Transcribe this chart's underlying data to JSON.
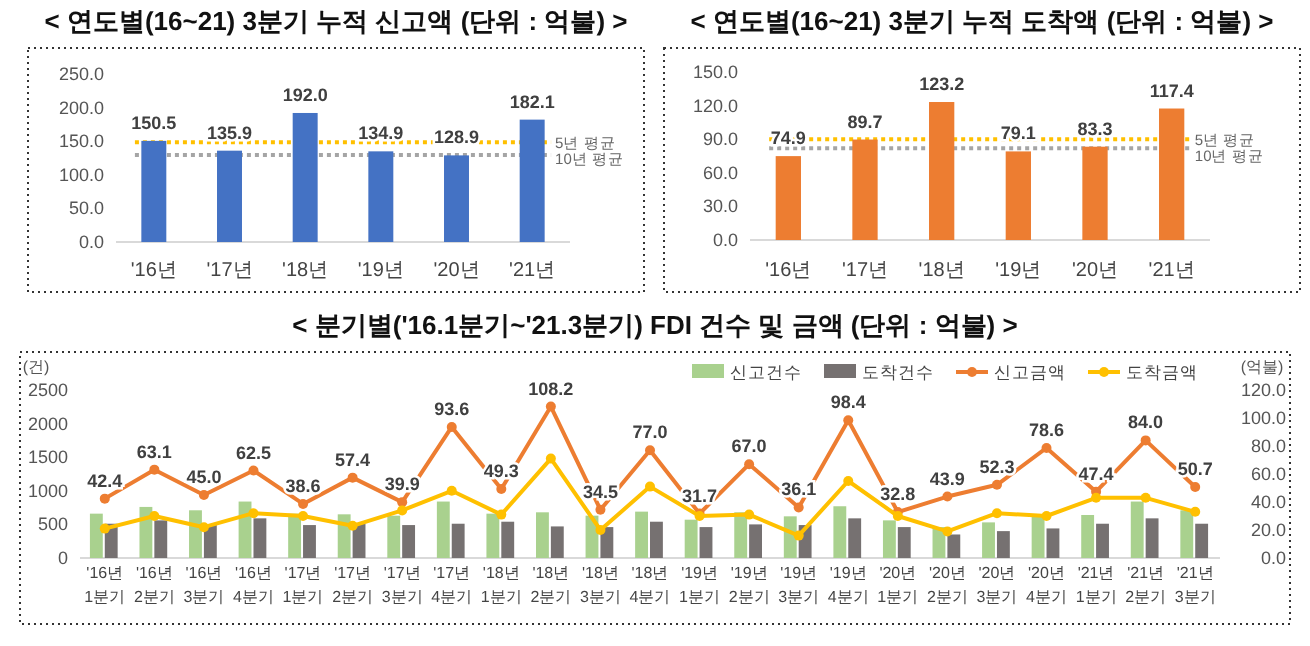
{
  "chart_data": [
    {
      "type": "bar",
      "title": "< 연도별(16~21) 3분기 누적 신고액 (단위 : 억불) >",
      "categories": [
        "'16년",
        "'17년",
        "'18년",
        "'19년",
        "'20년",
        "'21년"
      ],
      "series": [
        {
          "color": "#4472c4",
          "values": [
            150.5,
            135.9,
            192.0,
            134.9,
            128.9,
            182.1
          ],
          "value_labels": [
            "150.5",
            "135.9",
            "192.0",
            "134.9",
            "128.9",
            "182.1"
          ]
        }
      ],
      "ylim": [
        0,
        250
      ],
      "yticks": [
        {
          "value": 0,
          "label": "0.0"
        },
        {
          "value": 50,
          "label": "50.0"
        },
        {
          "value": 100,
          "label": "100.0"
        },
        {
          "value": 150,
          "label": "150.0"
        },
        {
          "value": 200,
          "label": "200.0"
        },
        {
          "value": 250,
          "label": "250.0"
        }
      ],
      "ref_lines": [
        {
          "axis": "y",
          "value": 148.4,
          "label": "5년 평균",
          "color": "#ffc000",
          "line_style": "dotted"
        },
        {
          "axis": "y",
          "value": 129.5,
          "label": "10년 평균",
          "color": "#a5a5a5",
          "line_style": "dotted"
        }
      ]
    },
    {
      "type": "bar",
      "title": "< 연도별(16~21) 3분기 누적 도착액 (단위 : 억불) >",
      "categories": [
        "'16년",
        "'17년",
        "'18년",
        "'19년",
        "'20년",
        "'21년"
      ],
      "series": [
        {
          "color": "#ed7d31",
          "values": [
            74.9,
            89.7,
            123.2,
            79.1,
            83.3,
            117.4
          ],
          "value_labels": [
            "74.9",
            "89.7",
            "123.2",
            "79.1",
            "83.3",
            "117.4"
          ]
        }
      ],
      "ylim": [
        0,
        150
      ],
      "yticks": [
        {
          "value": 0,
          "label": "0.0"
        },
        {
          "value": 30,
          "label": "30.0"
        },
        {
          "value": 60,
          "label": "60.0"
        },
        {
          "value": 90,
          "label": "90.0"
        },
        {
          "value": 120,
          "label": "120.0"
        },
        {
          "value": 150,
          "label": "150.0"
        }
      ],
      "ref_lines": [
        {
          "axis": "y",
          "value": 90.0,
          "label": "5년 평균",
          "color": "#ffc000",
          "line_style": "dotted"
        },
        {
          "axis": "y",
          "value": 82,
          "label": "10년 평균",
          "color": "#a5a5a5",
          "line_style": "dotted"
        }
      ]
    },
    {
      "type": "bar",
      "title": "< 분기별('16.1분기~'21.3분기) FDI 건수 및 금액 (단위 : 억불) >",
      "ylabel": "(건)",
      "y2label": "(억불)",
      "categories": [
        "'16년\n1분기",
        "'16년\n2분기",
        "'16년\n3분기",
        "'16년\n4분기",
        "'17년\n1분기",
        "'17년\n2분기",
        "'17년\n3분기",
        "'17년\n4분기",
        "'18년\n1분기",
        "'18년\n2분기",
        "'18년\n3분기",
        "'18년\n4분기",
        "'19년\n1분기",
        "'19년\n2분기",
        "'19년\n3분기",
        "'19년\n4분기",
        "'20년\n1분기",
        "'20년\n2분기",
        "'20년\n3분기",
        "'20년\n4분기",
        "'21년\n1분기",
        "'21년\n2분기",
        "'21년\n3분기"
      ],
      "series": [
        {
          "name": "신고건수",
          "type": "bar",
          "color": "#a9d18e",
          "values": [
            660,
            760,
            710,
            840,
            660,
            650,
            630,
            840,
            660,
            680,
            630,
            690,
            570,
            680,
            620,
            770,
            560,
            460,
            530,
            640,
            640,
            840,
            710
          ]
        },
        {
          "name": "도착건수",
          "type": "bar",
          "color": "#767171",
          "values": [
            510,
            560,
            490,
            590,
            490,
            510,
            490,
            510,
            540,
            470,
            460,
            540,
            460,
            500,
            490,
            590,
            460,
            350,
            400,
            440,
            510,
            590,
            510
          ]
        },
        {
          "name": "신고금액",
          "type": "line",
          "axis": "y2",
          "color": "#ed7d31",
          "values": [
            42.4,
            63.1,
            45.0,
            62.5,
            38.6,
            57.4,
            39.9,
            93.6,
            49.3,
            108.2,
            34.5,
            77.0,
            31.7,
            67.0,
            36.1,
            98.4,
            32.8,
            43.9,
            52.3,
            78.6,
            47.4,
            84.0,
            50.7
          ],
          "value_labels": [
            "42.4",
            "63.1",
            "45.0",
            "62.5",
            "38.6",
            "57.4",
            "39.9",
            "93.6",
            "49.3",
            "108.2",
            "34.5",
            "77.0",
            "31.7",
            "67.0",
            "36.1",
            "98.4",
            "32.8",
            "43.9",
            "52.3",
            "78.6",
            "47.4",
            "84.0",
            "50.7"
          ]
        },
        {
          "name": "도착금액",
          "type": "line",
          "axis": "y2",
          "color": "#ffc000",
          "values": [
            21,
            30,
            22,
            32,
            30,
            23,
            34,
            48,
            31,
            71,
            20,
            51,
            30,
            31,
            16,
            55,
            30,
            19,
            32,
            30,
            43,
            43,
            33
          ]
        }
      ],
      "ylim": [
        0,
        2500
      ],
      "yticks": [
        0,
        500,
        1000,
        1500,
        2000,
        2500
      ],
      "y2lim": [
        0,
        120
      ],
      "y2ticks": [
        {
          "value": 0,
          "label": "0.0"
        },
        {
          "value": 20,
          "label": "20.0"
        },
        {
          "value": 40,
          "label": "40.0"
        },
        {
          "value": 60,
          "label": "60.0"
        },
        {
          "value": 80,
          "label": "80.0"
        },
        {
          "value": 100,
          "label": "100.0"
        },
        {
          "value": 120,
          "label": "120.0"
        }
      ],
      "marker": "circle",
      "legend": "top"
    }
  ]
}
